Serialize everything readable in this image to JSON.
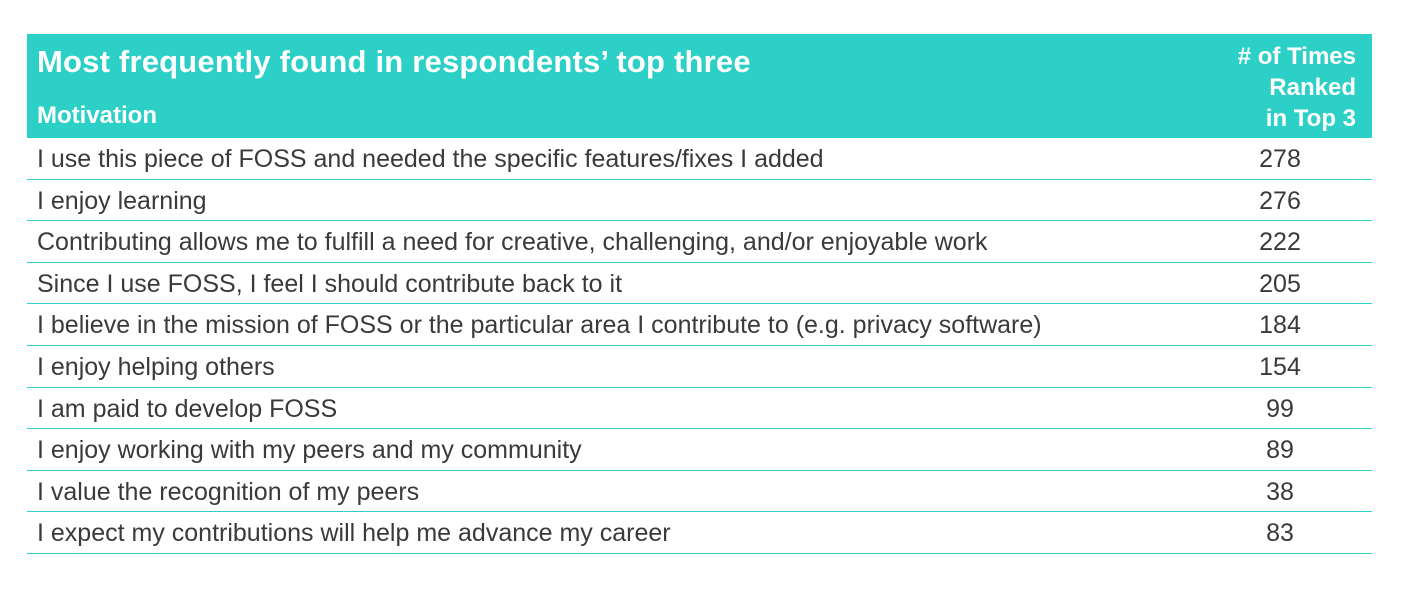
{
  "chart_data": {
    "type": "table",
    "title": "Most frequently found in respondents’ top three",
    "columns": [
      "Motivation",
      "# of Times Ranked in Top 3"
    ],
    "header_count_lines": [
      "# of Times",
      "Ranked",
      "in Top 3"
    ],
    "rows": [
      {
        "label": "I use this piece of FOSS and needed the specific features/fixes I added",
        "value": 278
      },
      {
        "label": "I enjoy learning",
        "value": 276
      },
      {
        "label": "Contributing allows me to fulfill a need for creative, challenging, and/or enjoyable work",
        "value": 222
      },
      {
        "label": "Since I use FOSS, I feel I should contribute back to it",
        "value": 205
      },
      {
        "label": "I believe in the mission of FOSS or the particular area I contribute to (e.g. privacy software)",
        "value": 184
      },
      {
        "label": "I enjoy helping others",
        "value": 154
      },
      {
        "label": "I am paid to develop FOSS",
        "value": 99
      },
      {
        "label": "I enjoy working with my peers and my community",
        "value": 89
      },
      {
        "label": "I value the recognition of my peers",
        "value": 38
      },
      {
        "label": "I expect my contributions will help me advance my career",
        "value": 83
      }
    ]
  },
  "colors": {
    "header_bg": "#2dd0c7",
    "rule": "#2dd0c7",
    "text": "#3a3a3a"
  }
}
